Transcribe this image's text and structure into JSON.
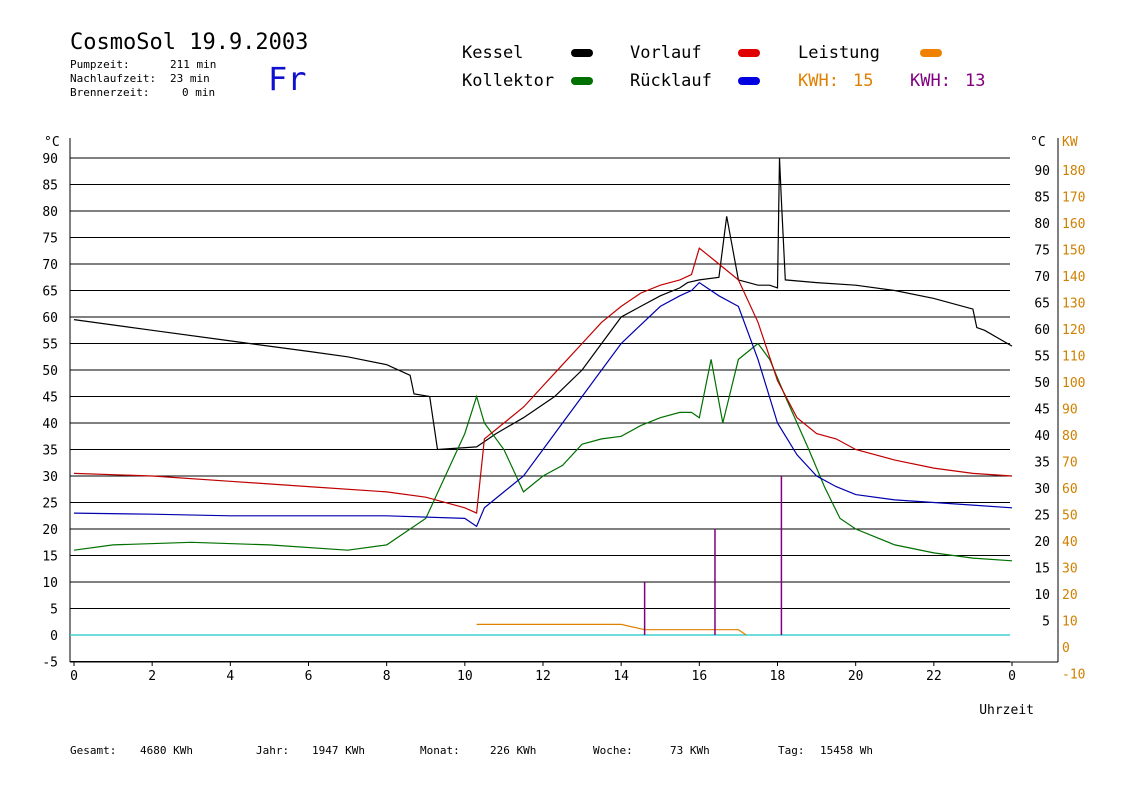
{
  "header": {
    "title": "CosmoSol 19.9.2003",
    "day": "Fr",
    "pump_label": "Pumpzeit:",
    "pump_value": "211 min",
    "afterrun_label": "Nachlaufzeit:",
    "afterrun_value": "23 min",
    "burner_label": "Brennerzeit:",
    "burner_value": "0 min"
  },
  "legend": {
    "kessel": "Kessel",
    "kollektor": "Kollektor",
    "vorlauf": "Vorlauf",
    "ruecklauf": "Rücklauf",
    "leistung": "Leistung",
    "kwh1_label": "KWH:",
    "kwh1_value": "15",
    "kwh2_label": "KWH:",
    "kwh2_value": "13"
  },
  "colors": {
    "kessel": "#000000",
    "kollektor": "#007000",
    "vorlauf": "#c00000",
    "ruecklauf": "#0000b0",
    "leistung": "#e08000",
    "kwh2": "#800080",
    "baseline": "#40d0d0",
    "right_axis": "#d08000"
  },
  "footer": {
    "gesamt_label": "Gesamt:",
    "gesamt_value": "4680 KWh",
    "jahr_label": "Jahr:",
    "jahr_value": "1947 KWh",
    "monat_label": "Monat:",
    "monat_value": "226 KWh",
    "woche_label": "Woche:",
    "woche_value": "73 KWh",
    "tag_label": "Tag:",
    "tag_value": "15458 Wh"
  },
  "chart_data": {
    "type": "line",
    "xlabel": "Uhrzeit",
    "x_ticks": [
      "0",
      "2",
      "4",
      "6",
      "8",
      "10",
      "12",
      "14",
      "16",
      "18",
      "20",
      "22",
      "0"
    ],
    "xlim": [
      0,
      24
    ],
    "y_left_unit": "°C",
    "y_left_ticks": [
      "90",
      "85",
      "80",
      "75",
      "70",
      "65",
      "60",
      "55",
      "50",
      "45",
      "40",
      "35",
      "30",
      "25",
      "20",
      "15",
      "10",
      "5",
      "0",
      "-5"
    ],
    "y_right_unit": "°C",
    "y_right_ticks": [
      "90",
      "85",
      "80",
      "75",
      "70",
      "65",
      "60",
      "55",
      "50",
      "45",
      "40",
      "35",
      "30",
      "25",
      "20",
      "15",
      "10",
      "5"
    ],
    "y2_unit": "KW",
    "y2_ticks": [
      "180",
      "170",
      "160",
      "150",
      "140",
      "130",
      "120",
      "110",
      "100",
      "90",
      "80",
      "70",
      "60",
      "50",
      "40",
      "30",
      "20",
      "10",
      "0",
      "-10"
    ],
    "ylim": [
      -5,
      90
    ],
    "y2lim": [
      -10,
      180
    ],
    "grid": true,
    "series": [
      {
        "name": "Kessel",
        "x": [
          0,
          2,
          4,
          6,
          7,
          8,
          8.6,
          8.7,
          9.1,
          9.3,
          10.3,
          10.8,
          11.5,
          12.3,
          13,
          13.5,
          14,
          14.5,
          15,
          15.5,
          15.7,
          16,
          16.5,
          16.7,
          17,
          17.5,
          17.8,
          18,
          18.05,
          18.1,
          18.2,
          19,
          20,
          21,
          22,
          23,
          23.1,
          23.3,
          24
        ],
        "y": [
          59.5,
          57.5,
          55.5,
          53.5,
          52.5,
          51,
          49,
          45.5,
          45,
          35,
          35.5,
          38,
          41,
          45,
          50,
          55,
          60,
          62,
          64,
          65.5,
          66.5,
          67,
          67.5,
          79,
          67,
          66,
          66,
          65.5,
          90,
          82,
          67,
          66.5,
          66,
          65,
          63.5,
          61.5,
          58,
          57.5,
          54.5
        ]
      },
      {
        "name": "Kollektor",
        "x": [
          0,
          1,
          3,
          5,
          7,
          8,
          9,
          9.5,
          10,
          10.3,
          10.5,
          11,
          11.5,
          12,
          12.5,
          13,
          13.5,
          14,
          14.5,
          15,
          15.5,
          15.8,
          16,
          16.3,
          16.6,
          17,
          17.5,
          17.8,
          18.2,
          18.8,
          19.2,
          19.6,
          20,
          21,
          22,
          23,
          24
        ],
        "y": [
          16,
          17,
          17.5,
          17,
          16,
          17,
          22,
          30,
          38,
          45,
          40,
          35,
          27,
          30,
          32,
          36,
          37,
          37.5,
          39.5,
          41,
          42,
          42,
          41,
          52,
          40,
          52,
          55,
          52,
          45,
          35,
          28,
          22,
          20,
          17,
          15.5,
          14.5,
          14
        ]
      },
      {
        "name": "Vorlauf",
        "x": [
          0,
          2,
          4,
          6,
          8,
          9,
          10,
          10.3,
          10.5,
          11,
          11.5,
          12,
          12.5,
          13,
          13.5,
          14,
          14.5,
          15,
          15.5,
          15.8,
          16,
          16.5,
          17,
          17.5,
          18,
          18.5,
          19,
          19.5,
          20,
          21,
          22,
          23,
          24
        ],
        "y": [
          30.5,
          30,
          29,
          28,
          27,
          26,
          24,
          23,
          37,
          40,
          43,
          47,
          51,
          55,
          59,
          62,
          64.5,
          66,
          67,
          68,
          73,
          70,
          67,
          59,
          48,
          41,
          38,
          37,
          35,
          33,
          31.5,
          30.5,
          30
        ]
      },
      {
        "name": "Rücklauf",
        "x": [
          0,
          2,
          4,
          6,
          8,
          10,
          10.3,
          10.5,
          11,
          11.5,
          12,
          12.5,
          13,
          13.5,
          14,
          14.5,
          15,
          15.5,
          15.8,
          16,
          16.5,
          17,
          17.5,
          18,
          18.5,
          19,
          19.5,
          20,
          21,
          22,
          23,
          24
        ],
        "y": [
          23,
          22.8,
          22.5,
          22.5,
          22.5,
          22,
          20.5,
          24,
          27,
          30,
          35,
          40,
          45,
          50,
          55,
          58.5,
          62,
          64,
          65,
          66.5,
          64,
          62,
          52,
          40,
          34,
          30,
          28,
          26.5,
          25.5,
          25,
          24.5,
          24
        ]
      },
      {
        "name": "Leistung",
        "x": [
          10.3,
          11,
          12,
          13,
          13.5,
          14,
          14.6,
          15,
          16,
          16.5,
          17,
          17.2
        ],
        "y": [
          2,
          2,
          2,
          2,
          2,
          2,
          1,
          1,
          1,
          1,
          1,
          0
        ]
      }
    ],
    "secondary_series": [
      {
        "name": "KWH 13",
        "x": [
          14.6,
          16.4,
          18.1
        ],
        "y": [
          10,
          20,
          30
        ]
      }
    ]
  }
}
